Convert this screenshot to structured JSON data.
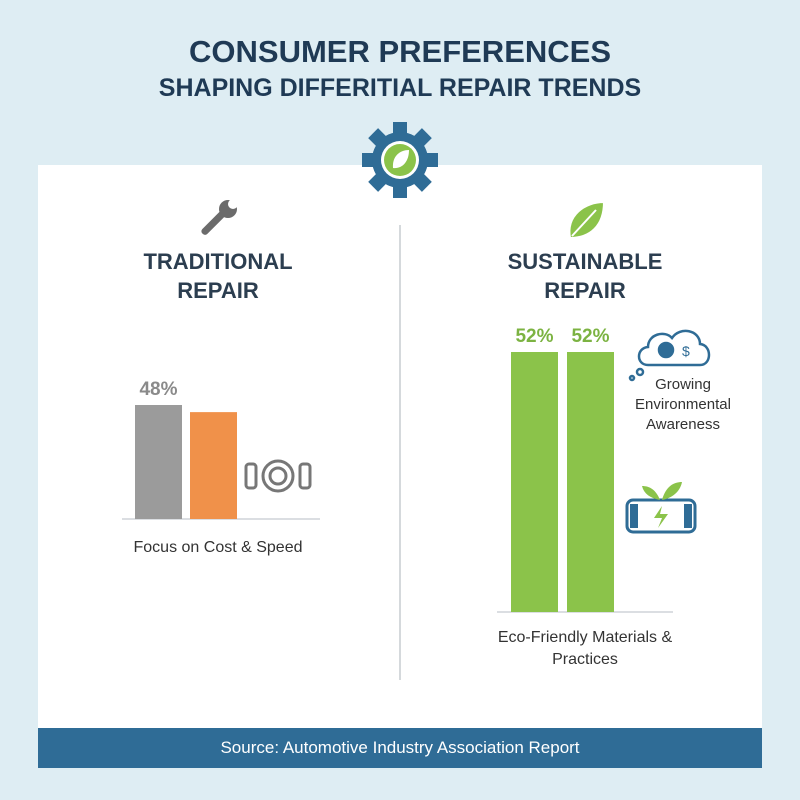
{
  "title": "CONSUMER PREFERENCES",
  "subtitle": "SHAPING DIFFERITIAL REPAIR TRENDS",
  "source": "Source: Automotive Industry Association Report",
  "chart_data": [
    {
      "type": "bar",
      "title": "TRADITIONAL REPAIR",
      "categories": [
        null,
        null
      ],
      "values": [
        48,
        45
      ],
      "value_labels": [
        "48%",
        null
      ],
      "colors": [
        "#9b9b9b",
        "#f0914a"
      ],
      "ylim": [
        0,
        60
      ],
      "caption": "Focus on Cost & Speed"
    },
    {
      "type": "bar",
      "title": "SUSTAINABLE REPAIR",
      "categories": [
        null,
        null
      ],
      "values": [
        52,
        52
      ],
      "value_labels": [
        "52%",
        "52%"
      ],
      "colors": [
        "#8bc34a",
        "#8bc34a"
      ],
      "ylim": [
        0,
        60
      ],
      "annotation": "Growing Environmental Awareness",
      "caption": "Eco-Friendly Materials & Practices"
    }
  ]
}
